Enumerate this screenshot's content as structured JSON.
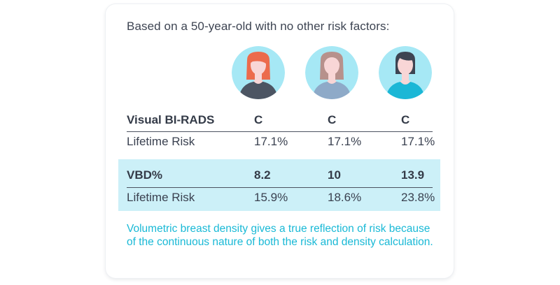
{
  "intro": "Based on a 50-year-old with no other risk factors:",
  "avatars": [
    {
      "icon": "woman-red-hair-icon",
      "hair": "#ec6b4c",
      "skin": "#f8d6d6",
      "shirt": "#4c5563",
      "bg": "#a6e8f5"
    },
    {
      "icon": "woman-brown-hair-icon",
      "hair": "#b7918c",
      "skin": "#f8d6d6",
      "shirt": "#8eaac8",
      "bg": "#a6e8f5"
    },
    {
      "icon": "woman-dark-hair-icon",
      "hair": "#3d4452",
      "skin": "#f8d6d6",
      "shirt": "#1bb7d6",
      "bg": "#a6e8f5"
    }
  ],
  "birads": {
    "label": "Visual BI-RADS",
    "values": [
      "C",
      "C",
      "C"
    ],
    "risk_label": "Lifetime Risk",
    "risk_values": [
      "17.1%",
      "17.1%",
      "17.1%"
    ]
  },
  "vbd": {
    "label": "VBD%",
    "values": [
      "8.2",
      "10",
      "13.9"
    ],
    "risk_label": "Lifetime Risk",
    "risk_values": [
      "15.9%",
      "18.6%",
      "23.8%"
    ]
  },
  "note": "Volumetric breast density gives a true reflection of risk because of the continuous nature of both the risk and density calculation.",
  "colors": {
    "accent": "#19b9d6",
    "band": "#ccf0f8",
    "text": "#3a4150"
  }
}
